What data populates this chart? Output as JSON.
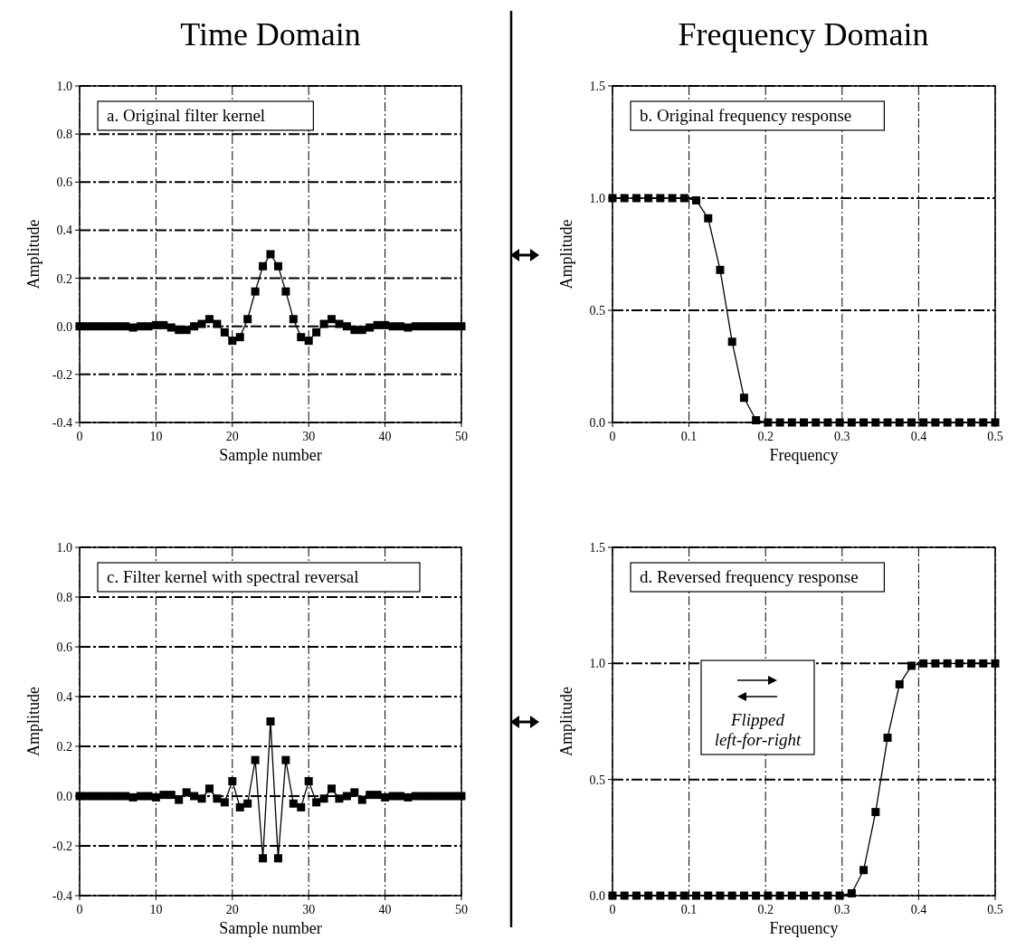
{
  "chart_data": [
    {
      "type": "line",
      "title": "Time Domain",
      "xlabel": "Sample number",
      "ylabel": "Amplitude",
      "annotations": [
        "a.  Original filter kernel"
      ],
      "x": [
        0,
        1,
        2,
        3,
        4,
        5,
        6,
        7,
        8,
        9,
        10,
        11,
        12,
        13,
        14,
        15,
        16,
        17,
        18,
        19,
        20,
        21,
        22,
        23,
        24,
        25,
        26,
        27,
        28,
        29,
        30,
        31,
        32,
        33,
        34,
        35,
        36,
        37,
        38,
        39,
        40,
        41,
        42,
        43,
        44,
        45,
        46,
        47,
        48,
        49,
        50
      ],
      "values": [
        0,
        0,
        0,
        0,
        0,
        0,
        0,
        -0.005,
        0,
        0,
        0.005,
        0.005,
        -0.005,
        -0.015,
        -0.015,
        0,
        0.01,
        0.03,
        0.01,
        -0.025,
        -0.06,
        -0.045,
        0.03,
        0.145,
        0.25,
        0.3,
        0.25,
        0.145,
        0.03,
        -0.045,
        -0.06,
        -0.025,
        0.01,
        0.03,
        0.01,
        0,
        -0.015,
        -0.015,
        -0.005,
        0.005,
        0.005,
        0,
        0,
        -0.005,
        0,
        0,
        0,
        0,
        0,
        0,
        0
      ],
      "color": "#000000",
      "xlim": [
        0,
        50
      ],
      "xticks": [
        0,
        10,
        20,
        30,
        40,
        50
      ],
      "ylim": [
        -0.4,
        1.0
      ],
      "yticks": [
        {
          "value": -0.4,
          "label": "-0.4"
        },
        {
          "value": -0.2,
          "label": "-0.2"
        },
        {
          "value": 0,
          "label": "0.0"
        },
        {
          "value": 0.2,
          "label": "0.2"
        },
        {
          "value": 0.4,
          "label": "0.4"
        },
        {
          "value": 0.6,
          "label": "0.6"
        },
        {
          "value": 0.8,
          "label": "0.8"
        },
        {
          "value": 1,
          "label": "1.0"
        }
      ],
      "grid": true,
      "marker": "square",
      "line_style": "solid"
    },
    {
      "type": "line",
      "title": "Frequency Domain",
      "xlabel": "Frequency",
      "ylabel": "Amplitude",
      "annotations": [
        "b.  Original frequency response"
      ],
      "x": [
        0,
        0.015625,
        0.03125,
        0.046875,
        0.0625,
        0.078125,
        0.09375,
        0.109375,
        0.125,
        0.140625,
        0.15625,
        0.171875,
        0.1875,
        0.203125,
        0.21875,
        0.234375,
        0.25,
        0.265625,
        0.28125,
        0.296875,
        0.3125,
        0.328125,
        0.34375,
        0.359375,
        0.375,
        0.390625,
        0.40625,
        0.421875,
        0.4375,
        0.453125,
        0.46875,
        0.484375,
        0.5
      ],
      "values": [
        1,
        1,
        1,
        1,
        1,
        1,
        1,
        0.99,
        0.91,
        0.68,
        0.36,
        0.11,
        0.01,
        0,
        0,
        0,
        0,
        0,
        0,
        0,
        0,
        0,
        0,
        0,
        0,
        0,
        0,
        0,
        0,
        0,
        0,
        0,
        0
      ],
      "color": "#000000",
      "xlim": [
        0,
        0.5
      ],
      "xticks": [
        0,
        0.1,
        0.2,
        0.3,
        0.4,
        0.5
      ],
      "ylim": [
        0,
        1.5
      ],
      "yticks": [
        {
          "value": 0,
          "label": "0.0"
        },
        {
          "value": 0.5,
          "label": "0.5"
        },
        {
          "value": 1,
          "label": "1.0"
        },
        {
          "value": 1.5,
          "label": "1.5"
        }
      ],
      "grid": true,
      "marker": "square",
      "line_style": "solid"
    },
    {
      "type": "line",
      "xlabel": "Sample number",
      "ylabel": "Amplitude",
      "annotations": [
        "c.  Filter kernel with spectral reversal"
      ],
      "x": [
        0,
        1,
        2,
        3,
        4,
        5,
        6,
        7,
        8,
        9,
        10,
        11,
        12,
        13,
        14,
        15,
        16,
        17,
        18,
        19,
        20,
        21,
        22,
        23,
        24,
        25,
        26,
        27,
        28,
        29,
        30,
        31,
        32,
        33,
        34,
        35,
        36,
        37,
        38,
        39,
        40,
        41,
        42,
        43,
        44,
        45,
        46,
        47,
        48,
        49,
        50
      ],
      "values": [
        0,
        0,
        0,
        0,
        0,
        0,
        0,
        -0.005,
        0,
        0,
        -0.005,
        0.005,
        0.005,
        -0.015,
        0.015,
        0,
        -0.01,
        0.03,
        -0.01,
        -0.025,
        0.06,
        -0.045,
        -0.03,
        0.145,
        -0.25,
        0.3,
        -0.25,
        0.145,
        -0.03,
        -0.045,
        0.06,
        -0.025,
        -0.01,
        0.03,
        -0.01,
        0,
        0.015,
        -0.015,
        0.005,
        0.005,
        -0.005,
        0,
        0,
        -0.005,
        0,
        0,
        0,
        0,
        0,
        0,
        0
      ],
      "color": "#000000",
      "xlim": [
        0,
        50
      ],
      "xticks": [
        0,
        10,
        20,
        30,
        40,
        50
      ],
      "ylim": [
        -0.4,
        1.0
      ],
      "yticks": [
        {
          "value": -0.4,
          "label": "-0.4"
        },
        {
          "value": -0.2,
          "label": "-0.2"
        },
        {
          "value": 0,
          "label": "0.0"
        },
        {
          "value": 0.2,
          "label": "0.2"
        },
        {
          "value": 0.4,
          "label": "0.4"
        },
        {
          "value": 0.6,
          "label": "0.6"
        },
        {
          "value": 0.8,
          "label": "0.8"
        },
        {
          "value": 1,
          "label": "1.0"
        }
      ],
      "grid": true,
      "marker": "square",
      "line_style": "solid"
    },
    {
      "type": "line",
      "xlabel": "Frequency",
      "ylabel": "Amplitude",
      "annotations": [
        "d.  Reversed frequency response",
        "Flipped left-for-right"
      ],
      "x": [
        0,
        0.015625,
        0.03125,
        0.046875,
        0.0625,
        0.078125,
        0.09375,
        0.109375,
        0.125,
        0.140625,
        0.15625,
        0.171875,
        0.1875,
        0.203125,
        0.21875,
        0.234375,
        0.25,
        0.265625,
        0.28125,
        0.296875,
        0.3125,
        0.328125,
        0.34375,
        0.359375,
        0.375,
        0.390625,
        0.40625,
        0.421875,
        0.4375,
        0.453125,
        0.46875,
        0.484375,
        0.5
      ],
      "values": [
        0,
        0,
        0,
        0,
        0,
        0,
        0,
        0,
        0,
        0,
        0,
        0,
        0,
        0,
        0,
        0,
        0,
        0,
        0,
        0,
        0.01,
        0.11,
        0.36,
        0.68,
        0.91,
        0.99,
        1,
        1,
        1,
        1,
        1,
        1,
        1
      ],
      "color": "#000000",
      "xlim": [
        0,
        0.5
      ],
      "xticks": [
        0,
        0.1,
        0.2,
        0.3,
        0.4,
        0.5
      ],
      "ylim": [
        0,
        1.5
      ],
      "yticks": [
        {
          "value": 0,
          "label": "0.0"
        },
        {
          "value": 0.5,
          "label": "0.5"
        },
        {
          "value": 1,
          "label": "1.0"
        },
        {
          "value": 1.5,
          "label": "1.5"
        }
      ],
      "grid": true,
      "marker": "square",
      "line_style": "solid"
    }
  ]
}
